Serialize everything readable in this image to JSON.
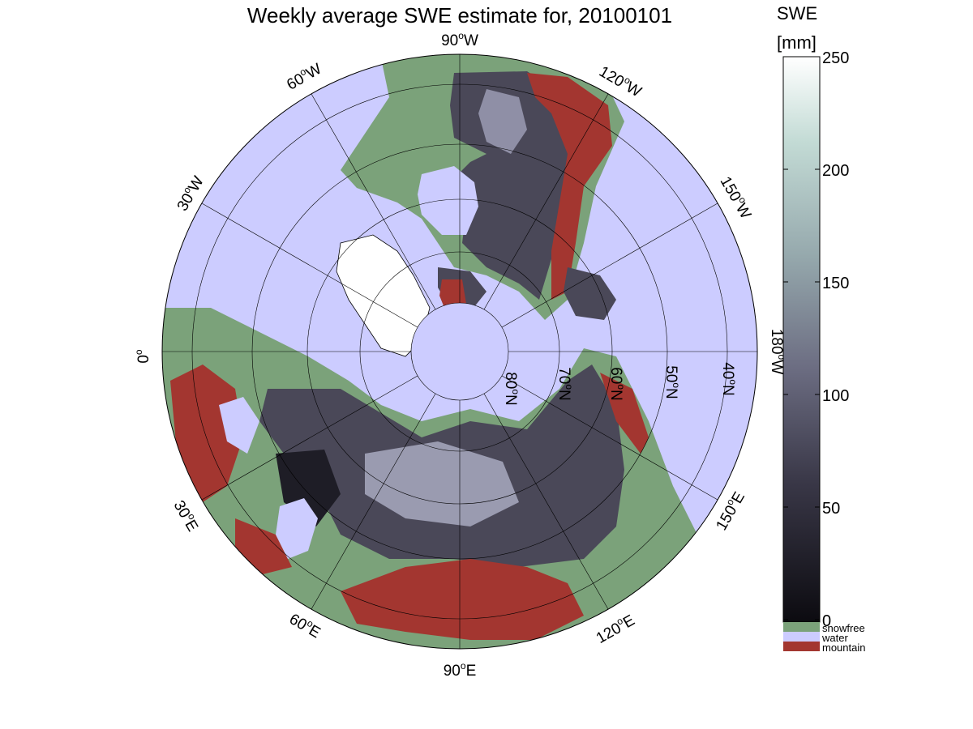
{
  "title": "Weekly average SWE estimate for, 20100101",
  "colorbar": {
    "label_line1": "SWE",
    "label_line2": "[mm]",
    "ticks": [
      "250",
      "200",
      "150",
      "100",
      "50",
      "0"
    ],
    "min": 0,
    "max": 250,
    "gradient": [
      "#0c0b10",
      "#3a3848",
      "#6c6d82",
      "#96a9ad",
      "#c3dbd5",
      "#ffffff"
    ],
    "categories": [
      {
        "label": "snowfree",
        "color": "#7ba27a"
      },
      {
        "label": "water",
        "color": "#ccccff"
      },
      {
        "label": "mountain",
        "color": "#a33630"
      }
    ]
  },
  "longitude_labels": {
    "lon_90w": {
      "deg": "90",
      "hemi": "W"
    },
    "lon_60w": {
      "deg": "60",
      "hemi": "W"
    },
    "lon_30w": {
      "deg": "30",
      "hemi": "W"
    },
    "lon_0": {
      "deg": "0",
      "hemi": ""
    },
    "lon_120w": {
      "deg": "120",
      "hemi": "W"
    },
    "lon_150w": {
      "deg": "150",
      "hemi": "W"
    },
    "lon_180w": {
      "deg": "180",
      "hemi": "W"
    },
    "lon_30e": {
      "deg": "30",
      "hemi": "E"
    },
    "lon_60e": {
      "deg": "60",
      "hemi": "E"
    },
    "lon_90e": {
      "deg": "90",
      "hemi": "E"
    },
    "lon_120e": {
      "deg": "120",
      "hemi": "E"
    },
    "lon_150e": {
      "deg": "150",
      "hemi": "E"
    }
  },
  "latitude_labels": {
    "lat_80n": {
      "deg": "80",
      "hemi": "N"
    },
    "lat_70n": {
      "deg": "70",
      "hemi": "N"
    },
    "lat_60n": {
      "deg": "60",
      "hemi": "N"
    },
    "lat_50n": {
      "deg": "50",
      "hemi": "N"
    },
    "lat_40n": {
      "deg": "40",
      "hemi": "N"
    }
  }
}
